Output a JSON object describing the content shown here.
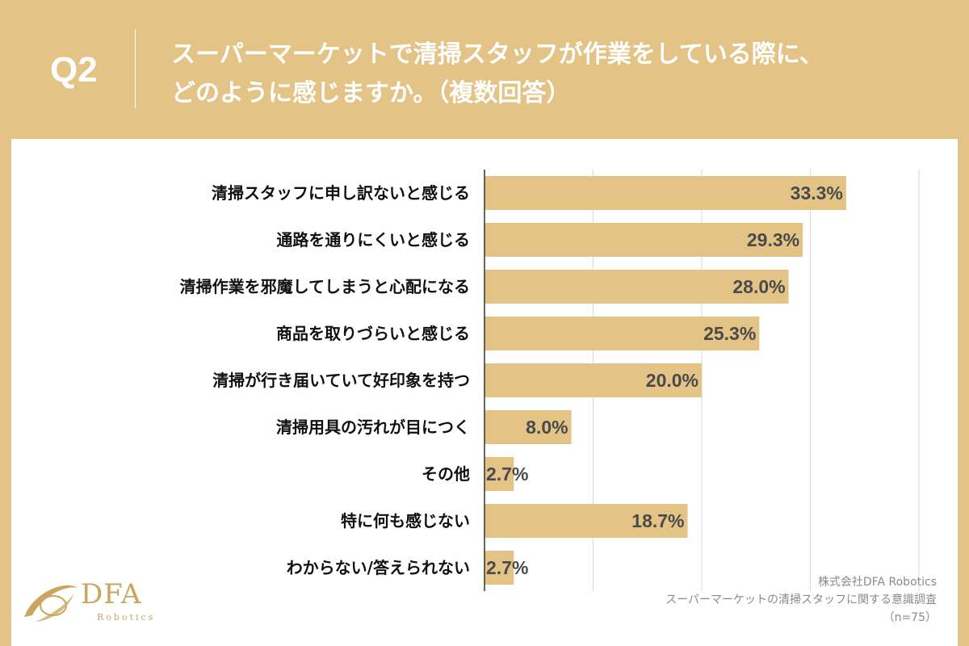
{
  "header": {
    "question": "Q2",
    "title_line1": "スーパーマーケットで清掃スタッフが作業をしている際に、",
    "title_line2": "どのように感じますか。（複数回答）"
  },
  "colors": {
    "background": "#e3c486",
    "bar": "#e3c486",
    "grid": "#d9d9d9",
    "axis": "#333333"
  },
  "chart_data": {
    "type": "bar",
    "orientation": "horizontal",
    "categories": [
      "清掃スタッフに申し訳ないと感じる",
      "通路を通りにくいと感じる",
      "清掃作業を邪魔してしまうと心配になる",
      "商品を取りづらいと感じる",
      "清掃が行き届いていて好印象を持つ",
      "清掃用具の汚れが目につく",
      "その他",
      "特に何も感じない",
      "わからない/答えられない"
    ],
    "values": [
      33.3,
      29.3,
      28.0,
      25.3,
      20.0,
      8.0,
      2.7,
      18.7,
      2.7
    ],
    "value_labels": [
      "33.3%",
      "29.3%",
      "28.0%",
      "25.3%",
      "20.0%",
      "8.0%",
      "2.7%",
      "18.7%",
      "2.7%"
    ],
    "xlim": [
      0,
      40
    ],
    "grid": true
  },
  "footer": {
    "source_line1": "株式会社DFA Robotics",
    "source_line2": "スーパーマーケットの清掃スタッフに関する意識調査",
    "source_line3": "（n=75）",
    "logo_text": "DFA",
    "logo_sub": "Robotics"
  }
}
